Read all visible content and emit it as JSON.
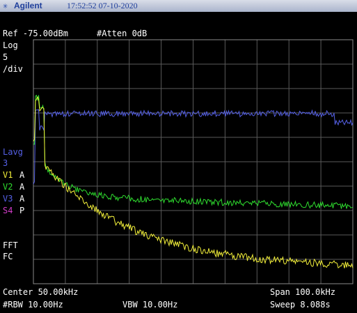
{
  "header": {
    "brand_icon": "✳",
    "brand": "Agilent",
    "datetime": "17:52:52 07-10-2020"
  },
  "top": {
    "ref": "Ref -75.00dBm",
    "atten": "#Atten 0dB"
  },
  "left_panel": {
    "scale_mode": "Log",
    "scale_value": "5",
    "scale_unit": "/div",
    "avg_label": "Lavg",
    "avg_value": "3",
    "traces": [
      {
        "name": "V1",
        "mode": "A",
        "color": "#f2ef3a"
      },
      {
        "name": "V2",
        "mode": "A",
        "color": "#2fdd2f"
      },
      {
        "name": "V3",
        "mode": "A",
        "color": "#5560e6"
      },
      {
        "name": "S4",
        "mode": "P",
        "color": "#d23cc9"
      }
    ],
    "fft": "FFT",
    "fc": "FC"
  },
  "bottom": {
    "center": "Center 50.00kHz",
    "span": "Span 100.0kHz",
    "rbw": "#RBW 10.00Hz",
    "vbw": "VBW 10.00Hz",
    "sweep": "Sweep 8.088s"
  },
  "colors": {
    "grid": "#5a5a5a",
    "border": "#8a8a8a",
    "trace_blue": "#5560e6",
    "trace_green": "#2fdd2f",
    "trace_yellow": "#f2ef3a"
  }
}
